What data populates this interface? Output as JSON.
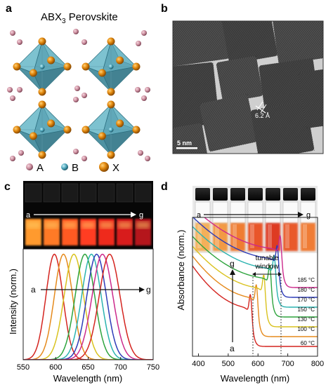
{
  "figure": {
    "panels": {
      "a": {
        "label": "a",
        "title_main": "ABX",
        "title_sub": "3",
        "title_rest": " Perovskite",
        "legend": [
          {
            "symbol": "A",
            "color": "#c98b9c"
          },
          {
            "symbol": "B",
            "color": "#4aa3b8"
          },
          {
            "symbol": "X",
            "color": "#e3890f"
          }
        ]
      },
      "b": {
        "label": "b",
        "lattice_spacing": "6.2 Å",
        "scale_bar": "5 nm"
      },
      "c": {
        "label": "c",
        "photo_arrow_start": "a",
        "photo_arrow_end": "g",
        "plot_arrow_start": "a",
        "plot_arrow_end": "g"
      },
      "d": {
        "label": "d",
        "photo_arrow_start": "a",
        "photo_arrow_end": "g",
        "plot_arrow_start": "a",
        "plot_arrow_end": "g",
        "window_label_1": "tunable",
        "window_label_2": "window"
      }
    }
  },
  "chart_data": [
    {
      "panel": "c",
      "type": "line",
      "xlabel": "Wavelength (nm)",
      "ylabel": "Intensity (norm.)",
      "xlim": [
        550,
        750
      ],
      "ylim": [
        0,
        1.05
      ],
      "x_ticks": [
        "550",
        "600",
        "650",
        "700",
        "750"
      ],
      "series": [
        {
          "peak": 598,
          "width": 13,
          "color": "#d4241f"
        },
        {
          "peak": 612,
          "width": 14,
          "color": "#e58a1c"
        },
        {
          "peak": 628,
          "width": 15,
          "color": "#d9c21e"
        },
        {
          "peak": 645,
          "width": 15,
          "color": "#2ea43d"
        },
        {
          "peak": 655,
          "width": 15,
          "color": "#2bb3b0"
        },
        {
          "peak": 663,
          "width": 15,
          "color": "#2d3bb8"
        },
        {
          "peak": 672,
          "width": 16,
          "color": "#cc2a8c"
        },
        {
          "peak": 683,
          "width": 16,
          "color": "#d4241f"
        }
      ]
    },
    {
      "panel": "d",
      "type": "line",
      "xlabel": "Wavelength (nm)",
      "ylabel": "Absorbance (norm.)",
      "xlim": [
        380,
        800
      ],
      "x_ticks": [
        "400",
        "500",
        "600",
        "700",
        "800"
      ],
      "window_nm": [
        585,
        680
      ],
      "series": [
        {
          "name": "60 °C",
          "edge": 580,
          "color": "#d4241f"
        },
        {
          "name": "100 °C",
          "edge": 600,
          "color": "#e58a1c"
        },
        {
          "name": "130 °C",
          "edge": 625,
          "color": "#d9c21e"
        },
        {
          "name": "150 °C",
          "edge": 645,
          "color": "#2ea43d"
        },
        {
          "name": "170 °C",
          "edge": 660,
          "color": "#2bb3b0"
        },
        {
          "name": "180 °C",
          "edge": 670,
          "color": "#2d3bb8"
        },
        {
          "name": "185 °C",
          "edge": 680,
          "color": "#cc2a8c"
        }
      ]
    }
  ]
}
